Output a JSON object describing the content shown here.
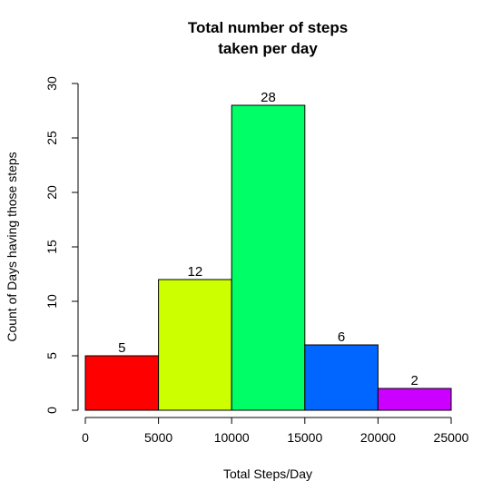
{
  "chart_data": {
    "type": "bar",
    "title_line1": "Total number of steps",
    "title_line2": "taken per day",
    "xlabel": "Total Steps/Day",
    "ylabel": "Count of Days having those steps",
    "xlim": [
      0,
      25000
    ],
    "ylim": [
      0,
      30
    ],
    "x_ticks": [
      0,
      5000,
      10000,
      15000,
      20000,
      25000
    ],
    "y_ticks": [
      0,
      5,
      10,
      15,
      20,
      25,
      30
    ],
    "grid": false,
    "bins": [
      {
        "from": 0,
        "to": 5000,
        "value": 5,
        "color": "#ff0000"
      },
      {
        "from": 5000,
        "to": 10000,
        "value": 12,
        "color": "#ccff00"
      },
      {
        "from": 10000,
        "to": 15000,
        "value": 28,
        "color": "#00ff66"
      },
      {
        "from": 15000,
        "to": 20000,
        "value": 6,
        "color": "#0066ff"
      },
      {
        "from": 20000,
        "to": 25000,
        "value": 2,
        "color": "#cc00ff"
      }
    ]
  }
}
